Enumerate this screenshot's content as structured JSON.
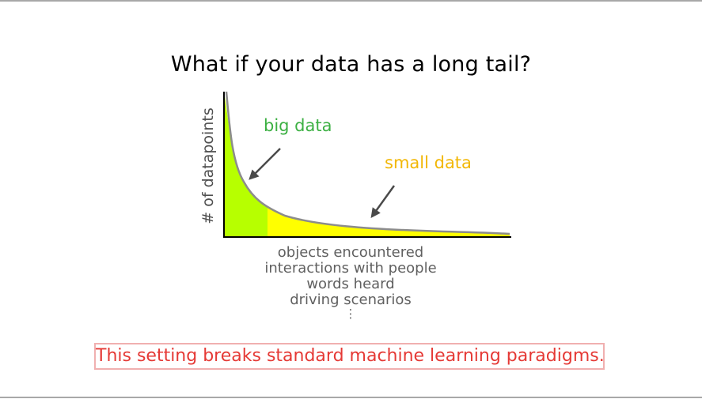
{
  "slide": {
    "title": "What if your data has a long tail?",
    "callout": "This setting breaks standard machine learning paradigms."
  },
  "diagram": {
    "y_axis_label": "# of datapoints",
    "regions": [
      {
        "label": "big data",
        "color": "#b7ff00"
      },
      {
        "label": "small data",
        "color": "#ffff00"
      }
    ],
    "x_axis_items": [
      "objects encountered",
      "interactions with people",
      "words heard",
      "driving scenarios",
      "⋮"
    ],
    "curve_color": "#8c8c8c",
    "arrow_color": "#4a4a4a"
  }
}
